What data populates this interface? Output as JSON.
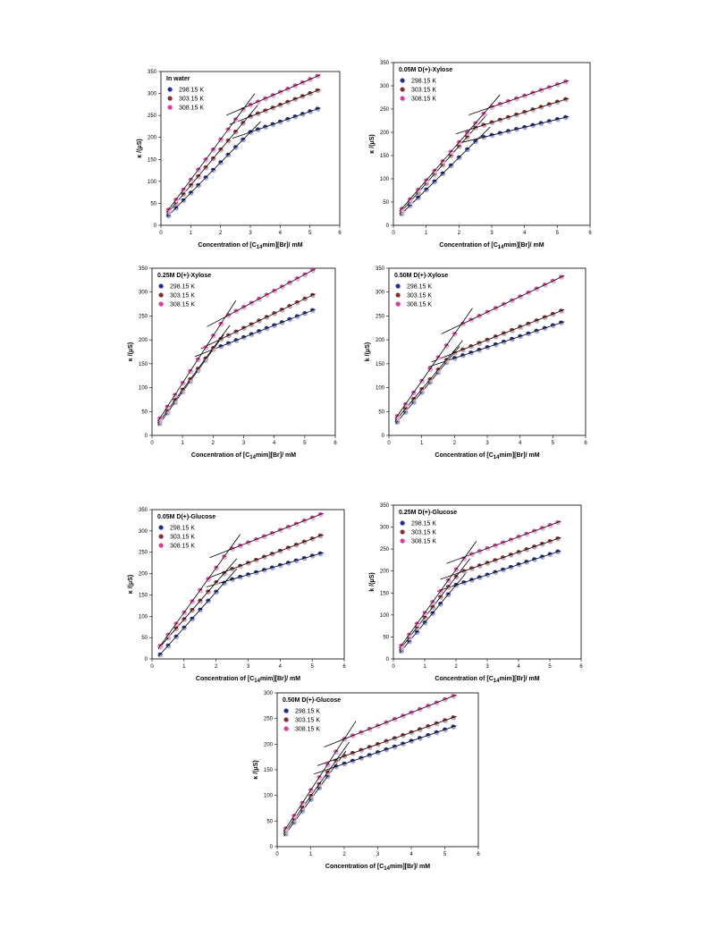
{
  "legend": [
    "298.15 K",
    "303.15 K",
    "308.15 K"
  ],
  "colors": {
    "298.15 K": "#1f2f8f",
    "303.15 K": "#8b2a2a",
    "308.15 K": "#e03a9c",
    "open": "#c8c8e8"
  },
  "xlabel_parts": {
    "pre": "Concentration of [C",
    "sub": "14",
    "post": "mim][Br]/ mM"
  },
  "ylabel": "κ /(μS)",
  "ylabel_alt": "k /(μS)",
  "chart_data": [
    {
      "type": "scatter",
      "title": "In water",
      "xlim": [
        0,
        6
      ],
      "ylim": [
        0,
        350
      ],
      "xticks": [
        0,
        1,
        2,
        3,
        4,
        5,
        6
      ],
      "yticks": [
        0,
        50,
        100,
        150,
        200,
        250,
        300,
        350
      ],
      "cmc": [
        3.0,
        2.9,
        2.8
      ],
      "series": [
        {
          "name": "298.15 K",
          "start": [
            0.25,
            22
          ],
          "break": [
            3.0,
            212
          ],
          "end": [
            5.3,
            266
          ]
        },
        {
          "name": "303.15 K",
          "start": [
            0.25,
            30
          ],
          "break": [
            2.9,
            245
          ],
          "end": [
            5.3,
            308
          ]
        },
        {
          "name": "308.15 K",
          "start": [
            0.25,
            35
          ],
          "break": [
            2.8,
            268
          ],
          "end": [
            5.3,
            341
          ]
        }
      ]
    },
    {
      "type": "scatter",
      "title": "0.05M D(+)-Xylose",
      "xlim": [
        0,
        6
      ],
      "ylim": [
        0,
        350
      ],
      "xticks": [
        0,
        1,
        2,
        3,
        4,
        5,
        6
      ],
      "yticks": [
        0,
        50,
        100,
        150,
        200,
        250,
        300,
        350
      ],
      "cmc": [
        2.6,
        2.5,
        2.9
      ],
      "series": [
        {
          "name": "298.15 K",
          "start": [
            0.25,
            25
          ],
          "break": [
            2.6,
            187
          ],
          "end": [
            5.3,
            233
          ]
        },
        {
          "name": "303.15 K",
          "start": [
            0.25,
            30
          ],
          "break": [
            2.5,
            210
          ],
          "end": [
            5.3,
            272
          ]
        },
        {
          "name": "308.15 K",
          "start": [
            0.25,
            35
          ],
          "break": [
            2.9,
            252
          ],
          "end": [
            5.3,
            310
          ]
        }
      ]
    },
    {
      "type": "scatter",
      "title": "0.25M D(+)-Xylose",
      "xlim": [
        0,
        6
      ],
      "ylim": [
        0,
        350
      ],
      "xticks": [
        0,
        1,
        2,
        3,
        4,
        5,
        6
      ],
      "yticks": [
        0,
        50,
        100,
        150,
        200,
        250,
        300,
        350
      ],
      "cmc": [
        2.0,
        2.2,
        2.4
      ],
      "series": [
        {
          "name": "298.15 K",
          "start": [
            0.25,
            25
          ],
          "break": [
            2.0,
            180
          ],
          "end": [
            5.3,
            263
          ]
        },
        {
          "name": "303.15 K",
          "start": [
            0.25,
            30
          ],
          "break": [
            2.2,
            200
          ],
          "end": [
            5.3,
            295
          ]
        },
        {
          "name": "308.15 K",
          "start": [
            0.25,
            35
          ],
          "break": [
            2.4,
            248
          ],
          "end": [
            5.3,
            347
          ]
        }
      ]
    },
    {
      "type": "scatter",
      "title": "0.50M D(+)-Xylose",
      "xlim": [
        0,
        6
      ],
      "ylim": [
        0,
        350
      ],
      "xticks": [
        0,
        1,
        2,
        3,
        4,
        5,
        6
      ],
      "yticks": [
        0,
        50,
        100,
        150,
        200,
        250,
        300,
        350
      ],
      "cmc": [
        1.8,
        1.9,
        2.2
      ],
      "series": [
        {
          "name": "298.15 K",
          "start": [
            0.25,
            28
          ],
          "break": [
            1.8,
            157
          ],
          "end": [
            5.3,
            237
          ]
        },
        {
          "name": "303.15 K",
          "start": [
            0.25,
            35
          ],
          "break": [
            1.9,
            170
          ],
          "end": [
            5.3,
            262
          ]
        },
        {
          "name": "308.15 K",
          "start": [
            0.25,
            40
          ],
          "break": [
            2.2,
            232
          ],
          "end": [
            5.3,
            333
          ]
        }
      ]
    },
    {
      "type": "scatter",
      "title": "0.05M D(+)-Glucose",
      "xlim": [
        0,
        6
      ],
      "ylim": [
        0,
        350
      ],
      "xticks": [
        0,
        1,
        2,
        3,
        4,
        5,
        6
      ],
      "yticks": [
        0,
        50,
        100,
        150,
        200,
        250,
        300,
        350
      ],
      "cmc": [
        2.3,
        2.3,
        2.4
      ],
      "series": [
        {
          "name": "298.15 K",
          "start": [
            0.25,
            10
          ],
          "break": [
            2.3,
            182
          ],
          "end": [
            5.3,
            248
          ]
        },
        {
          "name": "303.15 K",
          "start": [
            0.25,
            28
          ],
          "break": [
            2.3,
            205
          ],
          "end": [
            5.3,
            290
          ]
        },
        {
          "name": "308.15 K",
          "start": [
            0.25,
            30
          ],
          "break": [
            2.4,
            255
          ],
          "end": [
            5.3,
            340
          ]
        }
      ]
    },
    {
      "type": "scatter",
      "title": "0.25M D(+)-Glucose",
      "xlim": [
        0,
        6
      ],
      "ylim": [
        0,
        350
      ],
      "xticks": [
        0,
        1,
        2,
        3,
        4,
        5,
        6
      ],
      "yticks": [
        0,
        50,
        100,
        150,
        200,
        250,
        300,
        350
      ],
      "cmc": [
        2.0,
        2.1,
        2.3
      ],
      "series": [
        {
          "name": "298.15 K",
          "start": [
            0.25,
            18
          ],
          "break": [
            2.0,
            168
          ],
          "end": [
            5.3,
            245
          ]
        },
        {
          "name": "303.15 K",
          "start": [
            0.25,
            25
          ],
          "break": [
            2.1,
            196
          ],
          "end": [
            5.3,
            275
          ]
        },
        {
          "name": "308.15 K",
          "start": [
            0.25,
            30
          ],
          "break": [
            2.3,
            233
          ],
          "end": [
            5.3,
            312
          ]
        }
      ]
    },
    {
      "type": "scatter",
      "title": "0.50M D(+)-Glucose",
      "xlim": [
        0,
        6
      ],
      "ylim": [
        0,
        300
      ],
      "xticks": [
        0,
        1,
        2,
        3,
        4,
        5,
        6
      ],
      "yticks": [
        0,
        50,
        100,
        150,
        200,
        250,
        300
      ],
      "cmc": [
        1.7,
        1.8,
        2.0
      ],
      "series": [
        {
          "name": "298.15 K",
          "start": [
            0.25,
            25
          ],
          "break": [
            1.7,
            155
          ],
          "end": [
            5.3,
            235
          ]
        },
        {
          "name": "303.15 K",
          "start": [
            0.25,
            30
          ],
          "break": [
            1.8,
            172
          ],
          "end": [
            5.3,
            253
          ]
        },
        {
          "name": "308.15 K",
          "start": [
            0.25,
            35
          ],
          "break": [
            2.0,
            210
          ],
          "end": [
            5.3,
            295
          ]
        }
      ]
    }
  ]
}
